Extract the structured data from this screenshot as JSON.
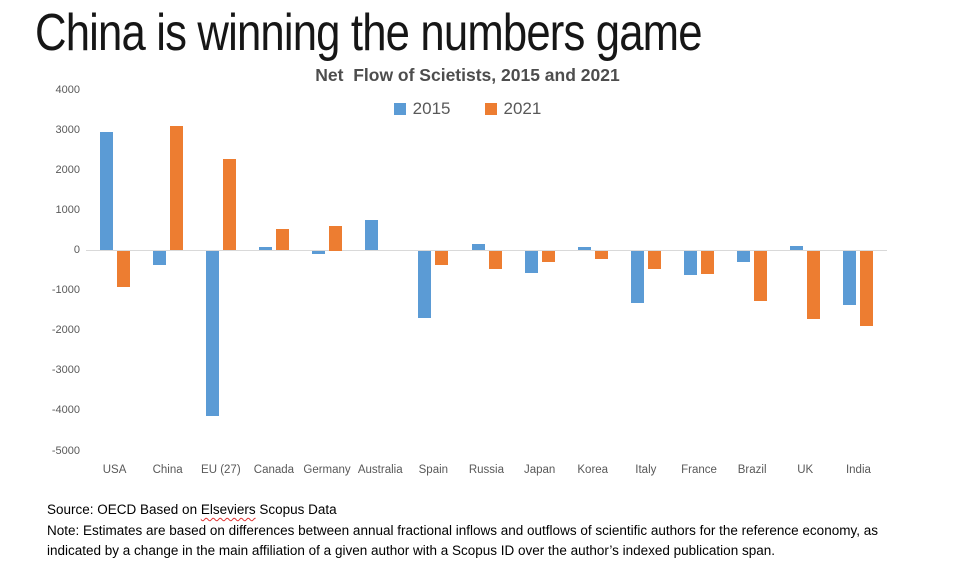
{
  "page": {
    "title": "China is winning the numbers game"
  },
  "chart_data": {
    "type": "bar",
    "title": "Net  Flow of Scietists, 2015 and 2021",
    "xlabel": "",
    "ylabel": "",
    "categories": [
      "USA",
      "China",
      "EU (27)",
      "Canada",
      "Germany",
      "Australia",
      "Spain",
      "Russia",
      "Japan",
      "Korea",
      "Italy",
      "France",
      "Brazil",
      "UK",
      "India"
    ],
    "series": [
      {
        "name": "2015",
        "color": "#5B9BD5",
        "values": [
          2950,
          -350,
          -4100,
          80,
          -60,
          770,
          -1650,
          150,
          -540,
          80,
          -1280,
          -580,
          -270,
          110,
          -1350
        ]
      },
      {
        "name": "2021",
        "color": "#ED7D31",
        "values": [
          -900,
          3100,
          2270,
          540,
          610,
          0,
          -340,
          -430,
          -260,
          -200,
          -450,
          -570,
          -1240,
          -1680,
          -1870
        ]
      }
    ],
    "ylim": [
      -5000,
      4000
    ],
    "yticks": [
      4000,
      3000,
      2000,
      1000,
      0,
      -1000,
      -2000,
      -3000,
      -4000,
      -5000
    ],
    "grid": false,
    "zero_line_color": "#D9D9D9",
    "legend_position": "top-center"
  },
  "footer": {
    "source_prefix": "Source: OECD Based on ",
    "source_misspelled_word": "Elseviers",
    "source_suffix": " Scopus Data",
    "note_line1": "Note: Estimates are based on differences between annual fractional inflows and outflows of scientific authors for the reference economy, as",
    "note_line2": "indicated by a change in the main affiliation of a given author with a Scopus ID over the author’s indexed publication span."
  }
}
